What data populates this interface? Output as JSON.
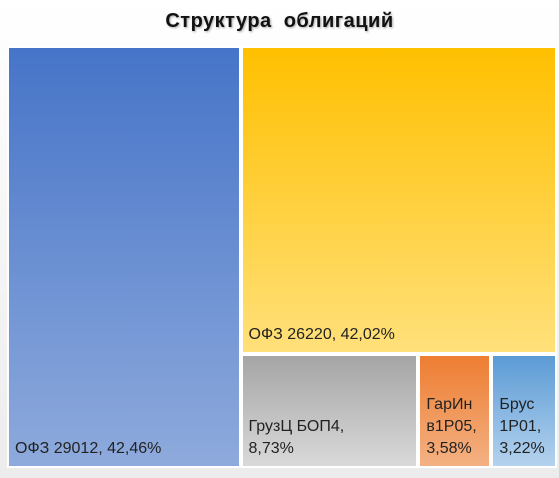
{
  "chart_data": {
    "type": "treemap",
    "title": "Структура  облигаций",
    "items": [
      {
        "name": "ОФЗ 29012",
        "value": 42.46,
        "label": "ОФЗ 29012, 42,46%",
        "color_top": "#4674c8",
        "color_bottom": "#8eaadc"
      },
      {
        "name": "ОФЗ 26220",
        "value": 42.02,
        "label": "ОФЗ 26220, 42,02%",
        "color_top": "#ffc000",
        "color_bottom": "#ffe07a"
      },
      {
        "name": "ГрузЦ БОП4",
        "value": 8.73,
        "label": "ГрузЦ БОП4,\n8,73%",
        "color_top": "#a5a5a5",
        "color_bottom": "#d9d9d9"
      },
      {
        "name": "ГарИнв1Р05",
        "value": 3.58,
        "label": "ГарИн\nв1Р05,\n3,58%",
        "color_top": "#ed7d31",
        "color_bottom": "#f4b183"
      },
      {
        "name": "Брус 1Р01",
        "value": 3.22,
        "label": "Брус\n1Р01,\n3,22%",
        "color_top": "#5b9bd5",
        "color_bottom": "#b4d2ee"
      }
    ]
  }
}
